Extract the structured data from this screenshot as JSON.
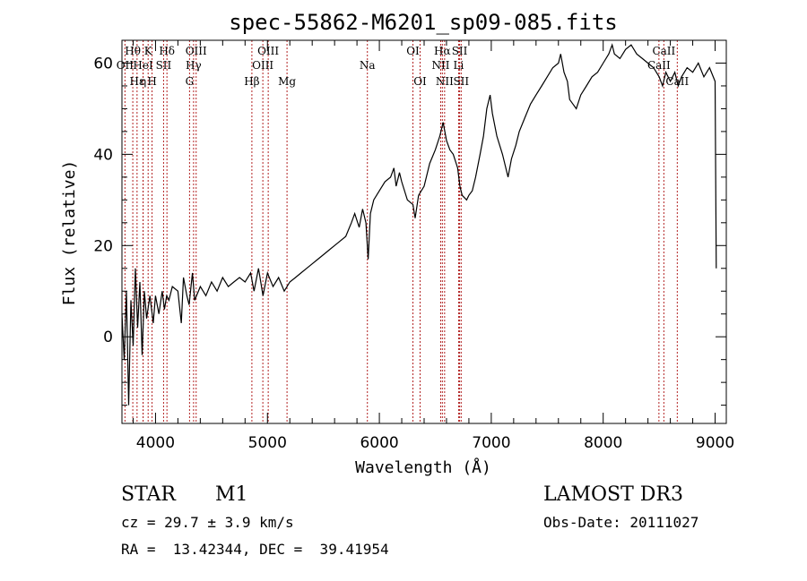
{
  "chart_data": {
    "type": "line",
    "title": "spec-55862-M6201_sp09-085.fits",
    "xlabel": "Wavelength (Å)",
    "ylabel": "Flux (relative)",
    "xlim": [
      3700,
      9100
    ],
    "ylim": [
      -19,
      65
    ],
    "xticks": [
      4000,
      5000,
      6000,
      7000,
      8000,
      9000
    ],
    "yticks": [
      0,
      20,
      40,
      60
    ],
    "series": [
      {
        "name": "flux",
        "points": [
          [
            3700,
            5
          ],
          [
            3720,
            -5
          ],
          [
            3740,
            10
          ],
          [
            3760,
            -15
          ],
          [
            3780,
            8
          ],
          [
            3800,
            -2
          ],
          [
            3820,
            15
          ],
          [
            3840,
            2
          ],
          [
            3860,
            12
          ],
          [
            3880,
            -4
          ],
          [
            3900,
            10
          ],
          [
            3920,
            4
          ],
          [
            3950,
            9
          ],
          [
            3980,
            3
          ],
          [
            4000,
            9
          ],
          [
            4030,
            5
          ],
          [
            4060,
            10
          ],
          [
            4080,
            6
          ],
          [
            4100,
            9
          ],
          [
            4120,
            8
          ],
          [
            4150,
            11
          ],
          [
            4200,
            10
          ],
          [
            4230,
            3
          ],
          [
            4250,
            13
          ],
          [
            4280,
            9
          ],
          [
            4300,
            7
          ],
          [
            4330,
            14
          ],
          [
            4350,
            8
          ],
          [
            4400,
            11
          ],
          [
            4450,
            9
          ],
          [
            4500,
            12
          ],
          [
            4550,
            10
          ],
          [
            4600,
            13
          ],
          [
            4650,
            11
          ],
          [
            4700,
            12
          ],
          [
            4750,
            13
          ],
          [
            4800,
            12
          ],
          [
            4850,
            14
          ],
          [
            4880,
            10
          ],
          [
            4920,
            15
          ],
          [
            4960,
            9
          ],
          [
            5000,
            14
          ],
          [
            5050,
            11
          ],
          [
            5100,
            13
          ],
          [
            5150,
            10
          ],
          [
            5200,
            12
          ],
          [
            5250,
            13
          ],
          [
            5300,
            14
          ],
          [
            5350,
            15
          ],
          [
            5400,
            16
          ],
          [
            5450,
            17
          ],
          [
            5500,
            18
          ],
          [
            5550,
            19
          ],
          [
            5600,
            20
          ],
          [
            5650,
            21
          ],
          [
            5700,
            22
          ],
          [
            5750,
            25
          ],
          [
            5780,
            27
          ],
          [
            5820,
            24
          ],
          [
            5850,
            28
          ],
          [
            5880,
            25
          ],
          [
            5900,
            17
          ],
          [
            5920,
            27
          ],
          [
            5950,
            30
          ],
          [
            6000,
            32
          ],
          [
            6050,
            34
          ],
          [
            6100,
            35
          ],
          [
            6130,
            37
          ],
          [
            6150,
            33
          ],
          [
            6180,
            36
          ],
          [
            6200,
            34
          ],
          [
            6250,
            30
          ],
          [
            6300,
            29
          ],
          [
            6320,
            26
          ],
          [
            6350,
            31
          ],
          [
            6400,
            33
          ],
          [
            6450,
            38
          ],
          [
            6500,
            41
          ],
          [
            6540,
            44
          ],
          [
            6570,
            47
          ],
          [
            6600,
            43
          ],
          [
            6630,
            41
          ],
          [
            6660,
            40
          ],
          [
            6700,
            37
          ],
          [
            6720,
            33
          ],
          [
            6740,
            31
          ],
          [
            6780,
            30
          ],
          [
            6800,
            31
          ],
          [
            6830,
            32
          ],
          [
            6860,
            35
          ],
          [
            6900,
            40
          ],
          [
            6930,
            44
          ],
          [
            6960,
            50
          ],
          [
            6990,
            53
          ],
          [
            7010,
            49
          ],
          [
            7050,
            44
          ],
          [
            7100,
            40
          ],
          [
            7150,
            35
          ],
          [
            7180,
            39
          ],
          [
            7220,
            42
          ],
          [
            7250,
            45
          ],
          [
            7300,
            48
          ],
          [
            7350,
            51
          ],
          [
            7400,
            53
          ],
          [
            7450,
            55
          ],
          [
            7500,
            57
          ],
          [
            7550,
            59
          ],
          [
            7600,
            60
          ],
          [
            7620,
            62
          ],
          [
            7650,
            58
          ],
          [
            7680,
            56
          ],
          [
            7700,
            52
          ],
          [
            7730,
            51
          ],
          [
            7760,
            50
          ],
          [
            7800,
            53
          ],
          [
            7850,
            55
          ],
          [
            7900,
            57
          ],
          [
            7950,
            58
          ],
          [
            8000,
            60
          ],
          [
            8050,
            62
          ],
          [
            8080,
            64
          ],
          [
            8100,
            62
          ],
          [
            8150,
            61
          ],
          [
            8200,
            63
          ],
          [
            8250,
            64
          ],
          [
            8300,
            62
          ],
          [
            8350,
            61
          ],
          [
            8400,
            60
          ],
          [
            8450,
            59
          ],
          [
            8500,
            57
          ],
          [
            8530,
            55
          ],
          [
            8560,
            58
          ],
          [
            8600,
            56
          ],
          [
            8640,
            58
          ],
          [
            8670,
            55
          ],
          [
            8700,
            57
          ],
          [
            8750,
            59
          ],
          [
            8800,
            58
          ],
          [
            8850,
            60
          ],
          [
            8900,
            57
          ],
          [
            8950,
            59
          ],
          [
            9000,
            56
          ],
          [
            9010,
            15
          ]
        ]
      }
    ],
    "lines": [
      {
        "name": "Hθ",
        "x": 3797,
        "row": 0
      },
      {
        "name": "K",
        "x": 3934,
        "row": 0
      },
      {
        "name": "Hδ",
        "x": 4102,
        "row": 0
      },
      {
        "name": "OIII",
        "x": 4363,
        "row": 0
      },
      {
        "name": "OIII",
        "x": 5007,
        "row": 0
      },
      {
        "name": "OI",
        "x": 6300,
        "row": 0
      },
      {
        "name": "Hα",
        "x": 6563,
        "row": 0
      },
      {
        "name": "SII",
        "x": 6717,
        "row": 0
      },
      {
        "name": "CaII",
        "x": 8542,
        "row": 0
      },
      {
        "name": "OII",
        "x": 3727,
        "row": 1
      },
      {
        "name": "HeI",
        "x": 3889,
        "row": 1
      },
      {
        "name": "SII",
        "x": 4072,
        "row": 1
      },
      {
        "name": "Hγ",
        "x": 4340,
        "row": 1
      },
      {
        "name": "OIII",
        "x": 4959,
        "row": 1
      },
      {
        "name": "Na",
        "x": 5893,
        "row": 1
      },
      {
        "name": "NII",
        "x": 6548,
        "row": 1
      },
      {
        "name": "Li",
        "x": 6708,
        "row": 1
      },
      {
        "name": "CaII",
        "x": 8498,
        "row": 1
      },
      {
        "name": "Hε",
        "x": 3835,
        "row": 2
      },
      {
        "name": "η",
        "x": 3889,
        "row": 2
      },
      {
        "name": "H",
        "x": 3969,
        "row": 2
      },
      {
        "name": "G",
        "x": 4304,
        "row": 2
      },
      {
        "name": "Hβ",
        "x": 4861,
        "row": 2
      },
      {
        "name": "Mg",
        "x": 5175,
        "row": 2
      },
      {
        "name": "OI",
        "x": 6364,
        "row": 2
      },
      {
        "name": "NII",
        "x": 6583,
        "row": 2
      },
      {
        "name": "SII",
        "x": 6731,
        "row": 2
      },
      {
        "name": "CaII",
        "x": 8662,
        "row": 2
      }
    ]
  },
  "info": {
    "class": "STAR",
    "subclass": "M1",
    "survey": "LAMOST DR3",
    "cz": "cz = 29.7 ± 3.9 km/s",
    "obs_date": "Obs-Date: 20111027",
    "coords": "RA =  13.42344, DEC =  39.41954"
  }
}
